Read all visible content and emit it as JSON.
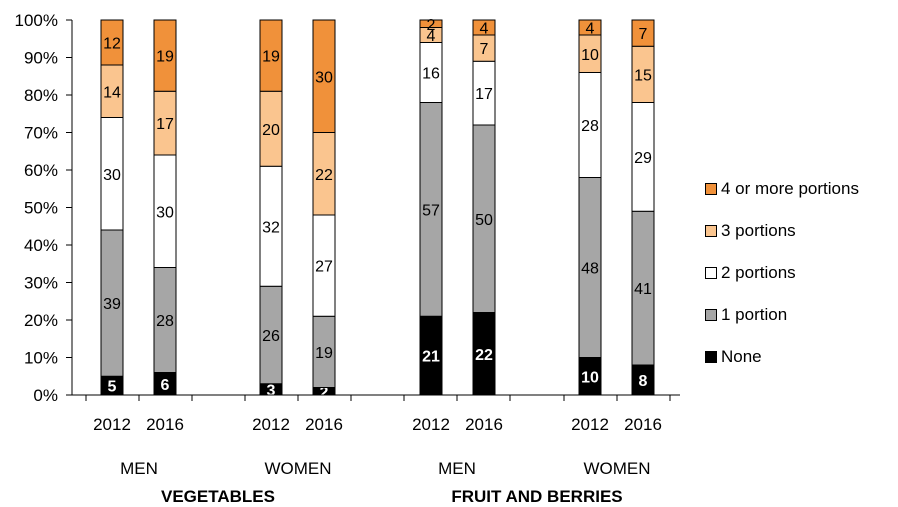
{
  "chart_data": {
    "type": "bar",
    "stacked": true,
    "percent": true,
    "ylim": [
      0,
      100
    ],
    "yticks": [
      "0%",
      "10%",
      "20%",
      "30%",
      "40%",
      "50%",
      "60%",
      "70%",
      "80%",
      "90%",
      "100%"
    ],
    "categories": [
      "2012",
      "2016",
      "2012",
      "2016",
      "2012",
      "2016",
      "2012",
      "2016"
    ],
    "groups": [
      "MEN",
      "WOMEN",
      "MEN",
      "WOMEN"
    ],
    "sections": [
      "VEGETABLES",
      "FRUIT AND BERRIES"
    ],
    "series": [
      {
        "name": "None",
        "color": "#000000",
        "values": [
          5,
          6,
          3,
          2,
          21,
          22,
          10,
          8
        ]
      },
      {
        "name": "1 portion",
        "color": "#a6a6a6",
        "values": [
          39,
          28,
          26,
          19,
          57,
          50,
          48,
          41
        ]
      },
      {
        "name": "2 portions",
        "color": "#ffffff",
        "values": [
          30,
          30,
          32,
          27,
          16,
          17,
          28,
          29
        ]
      },
      {
        "name": "3 portions",
        "color": "#fac58f",
        "values": [
          14,
          17,
          20,
          22,
          4,
          7,
          10,
          15
        ]
      },
      {
        "name": "4 or more portions",
        "color": "#f0913a",
        "values": [
          12,
          19,
          19,
          30,
          2,
          4,
          4,
          7
        ]
      }
    ],
    "legend_position": "right",
    "grid": false
  }
}
